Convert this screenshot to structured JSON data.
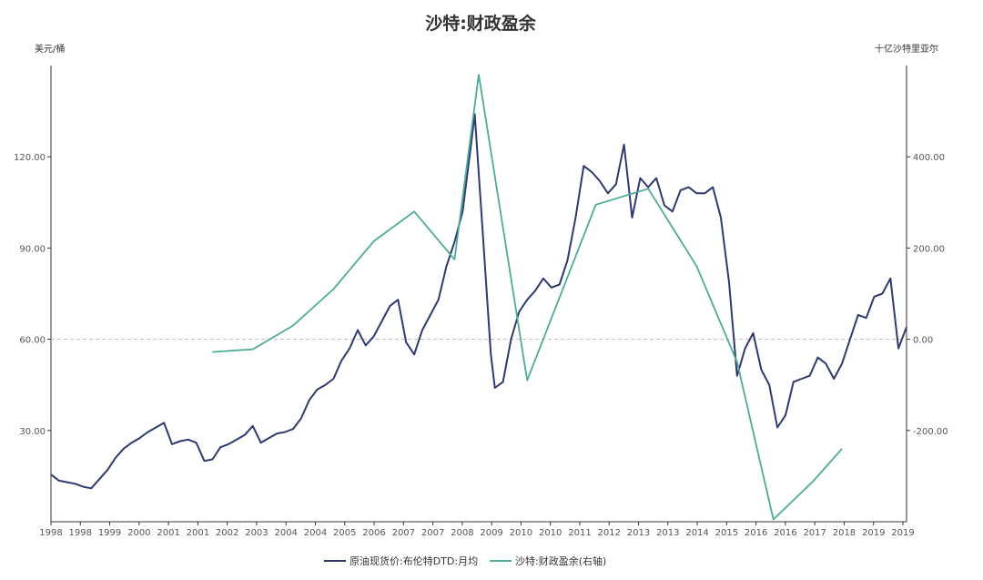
{
  "chart_data": {
    "type": "line",
    "title": "沙特:财政盈余",
    "left_axis": {
      "unit": "美元/桶",
      "range": [
        0,
        150
      ],
      "ticks": [
        30,
        60,
        90,
        120
      ],
      "tick_labels": [
        "30.00",
        "60.00",
        "90.00",
        "120.00"
      ]
    },
    "right_axis": {
      "unit": "十亿沙特里亚尔",
      "range": [
        -400,
        600
      ],
      "ticks": [
        -200,
        0,
        200,
        400
      ],
      "tick_labels": [
        "-200.00",
        "0.00",
        "200.00",
        "400.00"
      ]
    },
    "x_axis": {
      "range": [
        1998.0,
        2019.2
      ],
      "tick_labels": [
        "1998",
        "1998",
        "1999",
        "2000",
        "2001",
        "2001",
        "2002",
        "2003",
        "2004",
        "2004",
        "2005",
        "2006",
        "2007",
        "2007",
        "2008",
        "2009",
        "2010",
        "2010",
        "2011",
        "2012",
        "2013",
        "2013",
        "2014",
        "2015",
        "2016",
        "2016",
        "2017",
        "2018",
        "2019",
        "2019"
      ]
    },
    "reference_line": {
      "axis": "right",
      "value": 0,
      "style": "dashed"
    },
    "legend_position": "bottom-center",
    "series": [
      {
        "name": "原油现货价:布伦特DTD:月均",
        "axis": "left",
        "color": "#2e3a6e",
        "x": [
          1998.0,
          1998.2,
          1998.4,
          1998.6,
          1998.8,
          1999.0,
          1999.2,
          1999.4,
          1999.6,
          1999.8,
          2000.0,
          2000.2,
          2000.4,
          2000.6,
          2000.8,
          2001.0,
          2001.2,
          2001.4,
          2001.6,
          2001.8,
          2002.0,
          2002.2,
          2002.4,
          2002.6,
          2002.8,
          2003.0,
          2003.2,
          2003.4,
          2003.6,
          2003.8,
          2004.0,
          2004.2,
          2004.4,
          2004.6,
          2004.8,
          2005.0,
          2005.2,
          2005.4,
          2005.6,
          2005.8,
          2006.0,
          2006.2,
          2006.4,
          2006.6,
          2006.8,
          2007.0,
          2007.2,
          2007.4,
          2007.6,
          2007.8,
          2008.0,
          2008.2,
          2008.4,
          2008.5,
          2008.7,
          2008.9,
          2009.0,
          2009.2,
          2009.4,
          2009.6,
          2009.8,
          2010.0,
          2010.2,
          2010.4,
          2010.6,
          2010.8,
          2011.0,
          2011.2,
          2011.4,
          2011.6,
          2011.8,
          2012.0,
          2012.2,
          2012.4,
          2012.6,
          2012.8,
          2013.0,
          2013.2,
          2013.4,
          2013.6,
          2013.8,
          2014.0,
          2014.2,
          2014.4,
          2014.6,
          2014.8,
          2015.0,
          2015.2,
          2015.4,
          2015.6,
          2015.8,
          2016.0,
          2016.2,
          2016.4,
          2016.6,
          2016.8,
          2017.0,
          2017.2,
          2017.4,
          2017.6,
          2017.8,
          2018.0,
          2018.2,
          2018.4,
          2018.6,
          2018.8,
          2019.0,
          2019.2
        ],
        "values": [
          15.5,
          13.5,
          13.0,
          12.5,
          11.5,
          11.0,
          14.0,
          17.0,
          21.0,
          24.0,
          26.0,
          27.5,
          29.5,
          31.0,
          32.5,
          25.5,
          26.5,
          27.0,
          26.0,
          20.0,
          20.5,
          24.5,
          25.5,
          27.0,
          28.5,
          31.5,
          26.0,
          27.5,
          29.0,
          29.5,
          30.5,
          34.0,
          40.0,
          43.5,
          45.0,
          47.0,
          53.0,
          57.0,
          63.0,
          58.0,
          61.0,
          66.0,
          71.0,
          73.0,
          59.0,
          55.0,
          63.0,
          68.0,
          73.0,
          84.0,
          92.0,
          102.0,
          123.0,
          134.0,
          95.0,
          55.0,
          44.0,
          46.0,
          60.0,
          69.0,
          73.0,
          76.0,
          80.0,
          77.0,
          78.0,
          86.0,
          100.0,
          117.0,
          115.0,
          112.0,
          108.0,
          111.0,
          124.0,
          100.0,
          113.0,
          110.0,
          113.0,
          104.0,
          102.0,
          109.0,
          110.0,
          108.0,
          108.0,
          110.0,
          100.0,
          79.0,
          48.0,
          57.0,
          62.0,
          50.0,
          45.0,
          31.0,
          35.0,
          46.0,
          47.0,
          48.0,
          54.0,
          52.0,
          47.0,
          52.0,
          60.0,
          68.0,
          67.0,
          74.0,
          75.0,
          80.0,
          57.0,
          64.0
        ]
      },
      {
        "name": "沙特:财政盈余(右轴)",
        "axis": "right",
        "color": "#4dab98",
        "x": [
          2002.0,
          2003.0,
          2004.0,
          2005.0,
          2006.0,
          2007.0,
          2008.0,
          2008.6,
          2009.8,
          2011.5,
          2012.8,
          2014.0,
          2015.0,
          2015.9,
          2016.9,
          2017.6
        ],
        "values": [
          -28,
          -22,
          30,
          110,
          215,
          280,
          175,
          580,
          -90,
          295,
          330,
          160,
          -50,
          -395,
          -310,
          -240
        ]
      }
    ]
  }
}
